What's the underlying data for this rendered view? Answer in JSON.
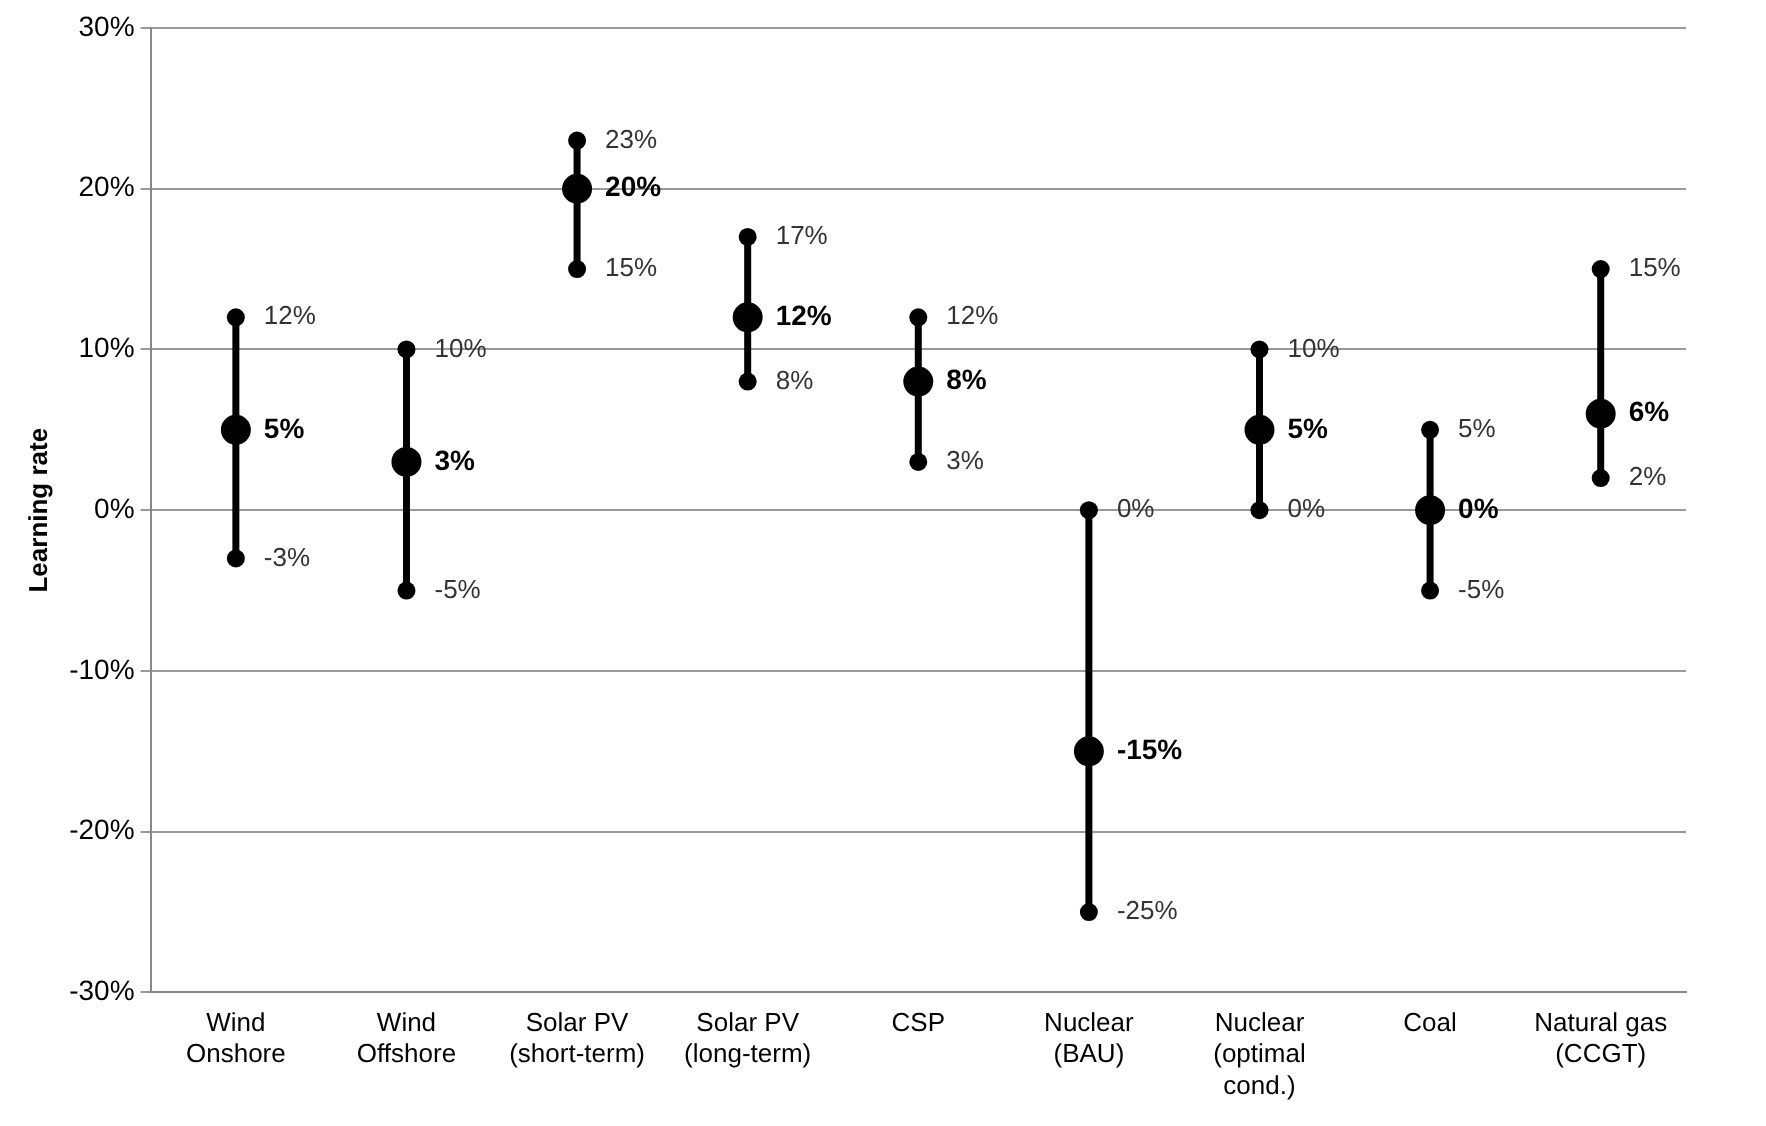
{
  "chart_data": {
    "type": "scatter",
    "ylabel": "Learning rate",
    "categories": [
      "Wind\nOnshore",
      "Wind\nOffshore",
      "Solar PV\n(short-term)",
      "Solar PV\n(long-term)",
      "CSP",
      "Nuclear\n(BAU)",
      "Nuclear\n(optimal\ncond.)",
      "Coal",
      "Natural gas\n(CCGT)"
    ],
    "series": [
      {
        "color": "#000000",
        "values": [
          5,
          3,
          20,
          12,
          8,
          -15,
          5,
          0,
          6
        ],
        "errors": [
          [
            -3,
            12
          ],
          [
            -5,
            10
          ],
          [
            15,
            23
          ],
          [
            8,
            17
          ],
          [
            3,
            12
          ],
          [
            -25,
            0
          ],
          [
            0,
            10
          ],
          [
            -5,
            5
          ],
          [
            2,
            15
          ]
        ],
        "value_labels": [
          "5%",
          "3%",
          "20%",
          "12%",
          "8%",
          "-15%",
          "5%",
          "0%",
          "6%"
        ]
      }
    ],
    "annotations": [
      {
        "text": "12%",
        "x": "Wind\nOnshore",
        "y": 12
      },
      {
        "text": "-3%",
        "x": "Wind\nOnshore",
        "y": -3
      },
      {
        "text": "10%",
        "x": "Wind\nOffshore",
        "y": 10
      },
      {
        "text": "-5%",
        "x": "Wind\nOffshore",
        "y": -5
      },
      {
        "text": "23%",
        "x": "Solar PV\n(short-term)",
        "y": 23
      },
      {
        "text": "15%",
        "x": "Solar PV\n(short-term)",
        "y": 15
      },
      {
        "text": "17%",
        "x": "Solar PV\n(long-term)",
        "y": 17
      },
      {
        "text": "8%",
        "x": "Solar PV\n(long-term)",
        "y": 8
      },
      {
        "text": "12%",
        "x": "CSP",
        "y": 12
      },
      {
        "text": "3%",
        "x": "CSP",
        "y": 3
      },
      {
        "text": "0%",
        "x": "Nuclear\n(BAU)",
        "y": 0
      },
      {
        "text": "-25%",
        "x": "Nuclear\n(BAU)",
        "y": -25
      },
      {
        "text": "10%",
        "x": "Nuclear\n(optimal\ncond.)",
        "y": 10
      },
      {
        "text": "0%",
        "x": "Nuclear\n(optimal\ncond.)",
        "y": 0
      },
      {
        "text": "5%",
        "x": "Coal",
        "y": 5
      },
      {
        "text": "-5%",
        "x": "Coal",
        "y": -5
      },
      {
        "text": "15%",
        "x": "Natural gas\n(CCGT)",
        "y": 15
      },
      {
        "text": "2%",
        "x": "Natural gas\n(CCGT)",
        "y": 2
      }
    ],
    "ylim": [
      -30,
      30
    ],
    "yticks": [
      {
        "value": -30,
        "label": "-30%"
      },
      {
        "value": -20,
        "label": "-20%"
      },
      {
        "value": -10,
        "label": "-10%"
      },
      {
        "value": 0,
        "label": "0%"
      },
      {
        "value": 10,
        "label": "10%"
      },
      {
        "value": 20,
        "label": "20%"
      },
      {
        "value": 30,
        "label": "30%"
      }
    ],
    "grid": "y",
    "marker": "circle",
    "legend": false
  }
}
